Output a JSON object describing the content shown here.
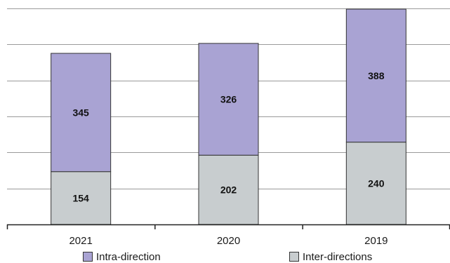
{
  "chart_data": {
    "type": "bar",
    "stacked": true,
    "categories": [
      "2021",
      "2020",
      "2019"
    ],
    "series": [
      {
        "name": "Inter-directions",
        "values": [
          154,
          202,
          240
        ],
        "color": "#C8CDCF"
      },
      {
        "name": "Intra-direction",
        "values": [
          345,
          326,
          388
        ],
        "color": "#A9A3D3"
      }
    ],
    "ylim": [
      0,
      630
    ],
    "grid": true,
    "legend_position": "bottom",
    "y_tick_labels_shown": false,
    "data_labels": true
  },
  "legend": [
    {
      "label": "Intra-direction",
      "color": "#A9A3D3"
    },
    {
      "label": "Inter-directions",
      "color": "#C8CDCF"
    }
  ]
}
